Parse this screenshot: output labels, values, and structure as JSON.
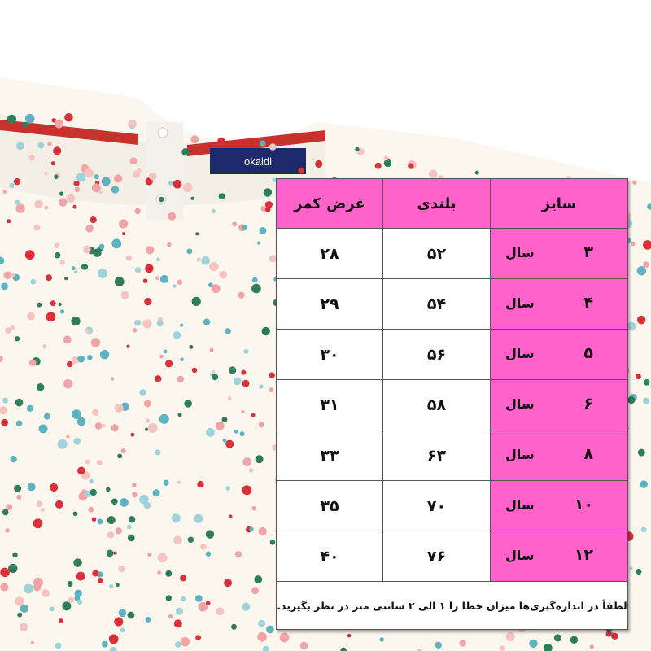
{
  "brand_label": "okaidi",
  "colors": {
    "header_bg": "#ff63cb",
    "fabric": "#fbf6ee",
    "collar": "#c8322c",
    "label": "#1c2a6b"
  },
  "table": {
    "headers": {
      "size": "سایز",
      "height": "بلندی",
      "waist": "عرض کمر"
    },
    "unit": "سال",
    "rows": [
      {
        "size": "۳",
        "height": "۵۲",
        "waist": "۲۸"
      },
      {
        "size": "۴",
        "height": "۵۴",
        "waist": "۲۹"
      },
      {
        "size": "۵",
        "height": "۵۶",
        "waist": "۳۰"
      },
      {
        "size": "۶",
        "height": "۵۸",
        "waist": "۳۱"
      },
      {
        "size": "۸",
        "height": "۶۳",
        "waist": "۳۳"
      },
      {
        "size": "۱۰",
        "height": "۷۰",
        "waist": "۳۵"
      },
      {
        "size": "۱۲",
        "height": "۷۶",
        "waist": "۴۰"
      }
    ],
    "note": "لطفاً در اندازه‌گیری‌ها میزان خطا را ۱ الی ۲ سانتی متر در نظر بگیرید."
  }
}
